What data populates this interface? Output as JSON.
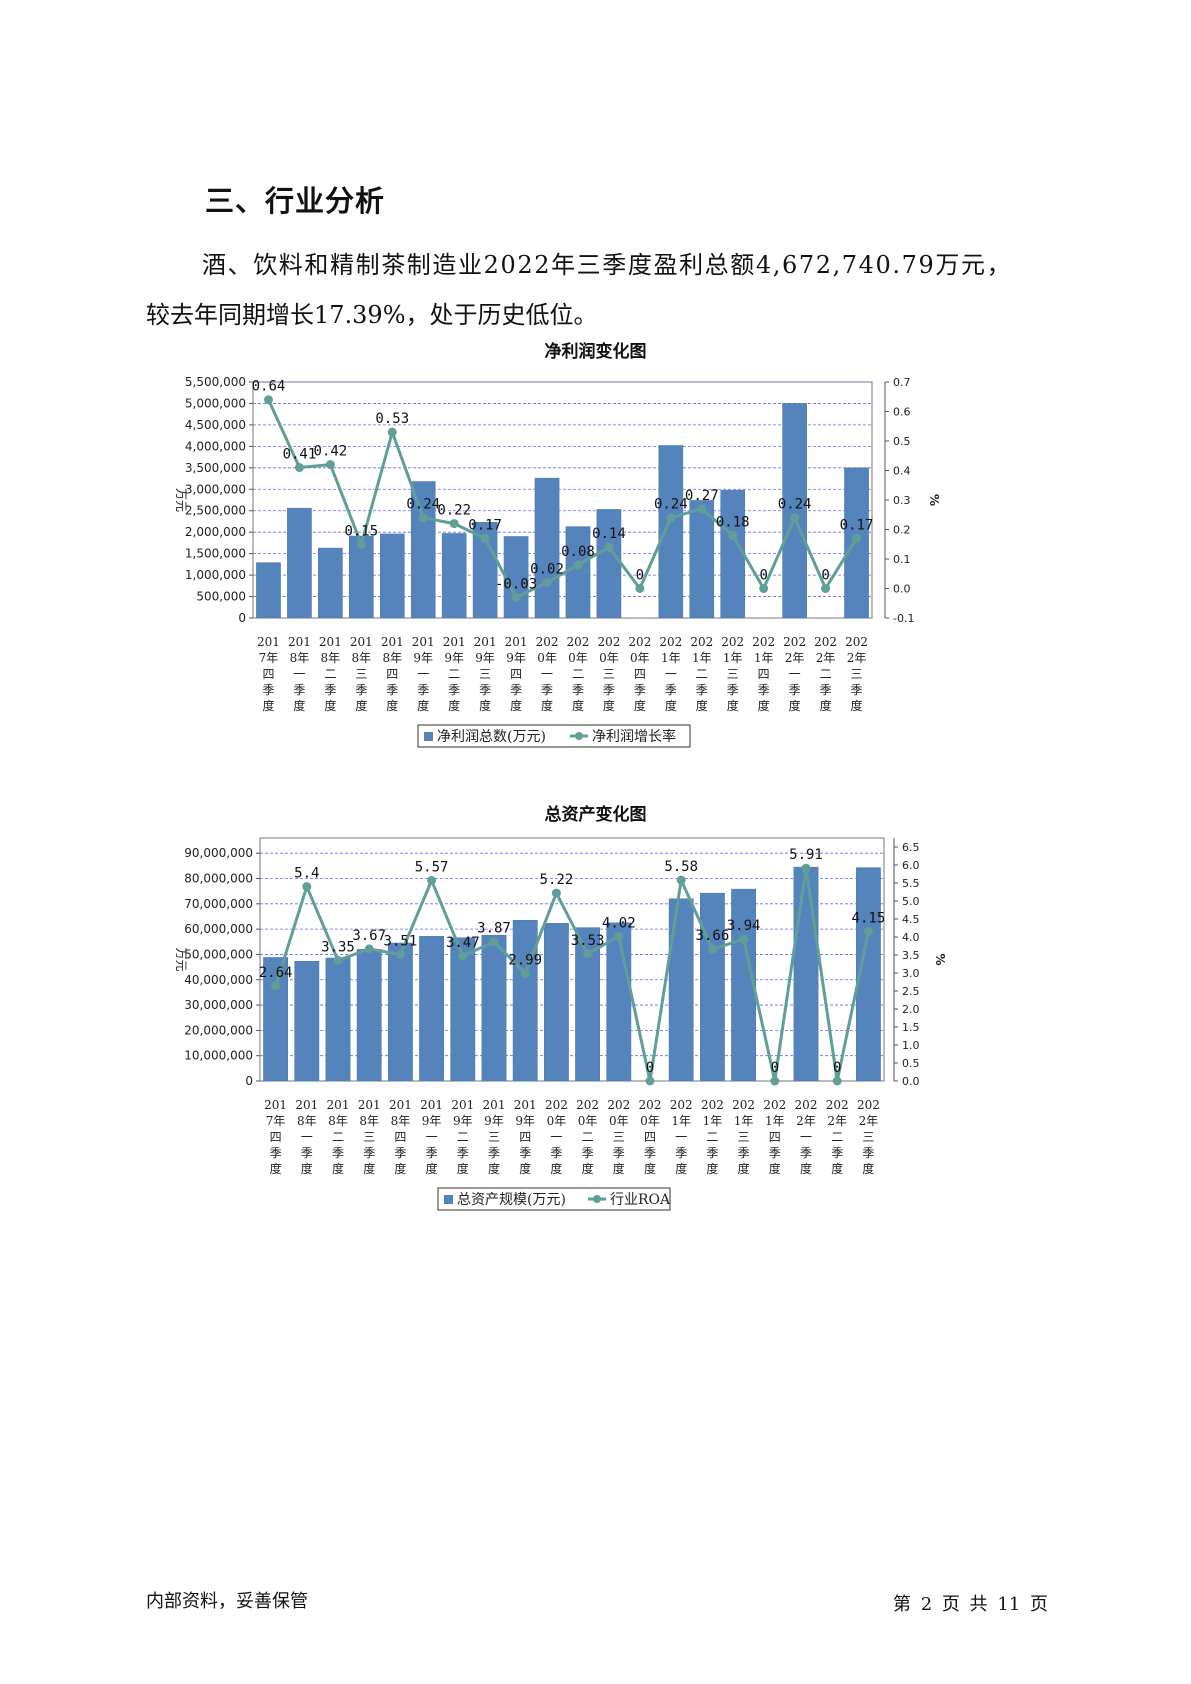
{
  "heading": "三、行业分析",
  "paragraph": {
    "line1": "酒、饮料和精制茶制造业2022年三季度盈利总额4,672,740.79万元，",
    "line2": "较去年同期增长17.39%，处于历史低位。"
  },
  "footer": {
    "left": "内部资料，妥善保管",
    "right": "第 2 页  共 11 页"
  },
  "colors": {
    "bar": "#5584bc",
    "line": "#5f9f97",
    "grid": "#6a6ae0"
  },
  "chart_data": [
    {
      "type": "bar",
      "title": "净利润变化图",
      "ylabel": "万元",
      "y2label": "%",
      "categories": [
        "2017年四季度",
        "2018年一季度",
        "2018年二季度",
        "2018年三季度",
        "2018年四季度",
        "2019年一季度",
        "2019年二季度",
        "2019年三季度",
        "2019年四季度",
        "2020年一季度",
        "2020年二季度",
        "2020年三季度",
        "2020年四季度",
        "2021年一季度",
        "2021年二季度",
        "2021年三季度",
        "2021年四季度",
        "2022年一季度",
        "2022年二季度",
        "2022年三季度"
      ],
      "ylim": [
        0,
        5500000
      ],
      "y_ticks": [
        "0",
        "500,000",
        "1,000,000",
        "1,500,000",
        "2,000,000",
        "2,500,000",
        "3,000,000",
        "3,500,000",
        "4,000,000",
        "4,500,000",
        "5,000,000",
        "5,500,000"
      ],
      "y2lim": [
        -0.1,
        0.7
      ],
      "y2_ticks": [
        "-0.1",
        "0.0",
        "0.1",
        "0.2",
        "0.3",
        "0.4",
        "0.5",
        "0.6",
        "0.7"
      ],
      "grid": true,
      "legend_position": "bottom",
      "series": [
        {
          "name": "净利润总数(万元)",
          "kind": "bar",
          "values": [
            1290000,
            2560000,
            1630000,
            1910000,
            1960000,
            3180000,
            1970000,
            2230000,
            1900000,
            3260000,
            2130000,
            2530000,
            0,
            4020000,
            2740000,
            2980000,
            0,
            5000000,
            0,
            3500000
          ]
        },
        {
          "name": "净利润增长率",
          "kind": "line",
          "axis": "right",
          "values": [
            0.64,
            0.41,
            0.42,
            0.15,
            0.53,
            0.24,
            0.22,
            0.17,
            -0.03,
            0.02,
            0.08,
            0.14,
            0,
            0.24,
            0.27,
            0.18,
            0,
            0.24,
            0,
            0.17
          ],
          "labels": [
            "0.64",
            "0.41",
            "0.42",
            "0.15",
            "0.53",
            "0.24",
            "0.22",
            "0.17",
            "-0.03",
            "0.02",
            "0.08",
            "0.14",
            "0",
            "0.24",
            "0.27",
            "0.18",
            "0",
            "0.24",
            "0",
            "0.17"
          ]
        }
      ]
    },
    {
      "type": "bar",
      "title": "总资产变化图",
      "ylabel": "万元",
      "y2label": "%",
      "categories": [
        "2017年四季度",
        "2018年一季度",
        "2018年二季度",
        "2018年三季度",
        "2018年四季度",
        "2019年一季度",
        "2019年二季度",
        "2019年三季度",
        "2019年四季度",
        "2020年一季度",
        "2020年二季度",
        "2020年三季度",
        "2020年四季度",
        "2021年一季度",
        "2021年二季度",
        "2021年三季度",
        "2021年四季度",
        "2022年一季度",
        "2022年二季度",
        "2022年三季度"
      ],
      "ylim": [
        0,
        96000000
      ],
      "y_ticks": [
        "0",
        "10,000,000",
        "20,000,000",
        "30,000,000",
        "40,000,000",
        "50,000,000",
        "60,000,000",
        "70,000,000",
        "80,000,000",
        "90,000,000"
      ],
      "y2lim": [
        0,
        6.75
      ],
      "y2_ticks": [
        "0.0",
        "0.5",
        "1.0",
        "1.5",
        "2.0",
        "2.5",
        "3.0",
        "3.5",
        "4.0",
        "4.5",
        "5.0",
        "5.5",
        "6.0",
        "6.5"
      ],
      "grid": true,
      "legend_position": "bottom",
      "series": [
        {
          "name": "总资产规模(万元)",
          "kind": "bar",
          "values": [
            48800000,
            47300000,
            48600000,
            52000000,
            54500000,
            57200000,
            56600000,
            57600000,
            63500000,
            62300000,
            60600000,
            62500000,
            0,
            72000000,
            74200000,
            75800000,
            0,
            84500000,
            0,
            84300000
          ]
        },
        {
          "name": "行业ROA",
          "kind": "line",
          "axis": "right",
          "values": [
            2.64,
            5.4,
            3.35,
            3.67,
            3.51,
            5.57,
            3.47,
            3.87,
            2.99,
            5.22,
            3.53,
            4.02,
            0,
            5.58,
            3.66,
            3.94,
            0,
            5.91,
            0,
            4.15
          ],
          "labels": [
            "2.64",
            "5.4",
            "3.35",
            "3.67",
            "3.51",
            "5.57",
            "3.47",
            "3.87",
            "2.99",
            "5.22",
            "3.53",
            "4.02",
            "0",
            "5.58",
            "3.66",
            "3.94",
            "0",
            "5.91",
            "0",
            "4.15"
          ]
        }
      ]
    }
  ]
}
